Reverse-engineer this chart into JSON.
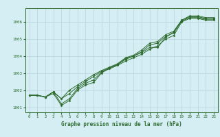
{
  "title": "Graphe pression niveau de la mer (hPa)",
  "background_color": "#d4eef4",
  "grid_color": "#b8d4dc",
  "line_color": "#2d6a2d",
  "text_color": "#2d6a2d",
  "xlim": [
    -0.5,
    23.5
  ],
  "ylim": [
    1000.7,
    1006.8
  ],
  "yticks": [
    1001,
    1002,
    1003,
    1004,
    1005,
    1006
  ],
  "xticks": [
    0,
    1,
    2,
    3,
    4,
    5,
    6,
    7,
    8,
    9,
    10,
    11,
    12,
    13,
    14,
    15,
    16,
    17,
    18,
    19,
    20,
    21,
    22,
    23
  ],
  "hours": [
    0,
    1,
    2,
    3,
    4,
    5,
    6,
    7,
    8,
    9,
    10,
    11,
    12,
    13,
    14,
    15,
    16,
    17,
    18,
    19,
    20,
    21,
    22,
    23
  ],
  "series": [
    [
      1001.7,
      1001.7,
      1001.6,
      1001.8,
      1001.1,
      1001.4,
      1002.0,
      1002.3,
      1002.45,
      1003.0,
      1003.3,
      1003.5,
      1003.8,
      1004.0,
      1004.2,
      1004.5,
      1004.5,
      1005.1,
      1005.4,
      1006.1,
      1006.35,
      1006.35,
      1006.25,
      1006.25
    ],
    [
      1001.7,
      1001.7,
      1001.6,
      1001.9,
      1001.2,
      1001.5,
      1002.1,
      1002.4,
      1002.6,
      1003.05,
      1003.25,
      1003.45,
      1003.7,
      1003.9,
      1004.1,
      1004.4,
      1004.6,
      1005.0,
      1005.2,
      1006.0,
      1006.2,
      1006.2,
      1006.1,
      1006.1
    ],
    [
      1001.7,
      1001.7,
      1001.6,
      1001.9,
      1001.5,
      1001.8,
      1002.2,
      1002.5,
      1002.8,
      1003.1,
      1003.3,
      1003.5,
      1003.85,
      1004.0,
      1004.25,
      1004.65,
      1004.75,
      1005.15,
      1005.35,
      1006.05,
      1006.25,
      1006.25,
      1006.15,
      1006.15
    ],
    [
      1001.7,
      1001.7,
      1001.6,
      1001.9,
      1001.5,
      1002.0,
      1002.3,
      1002.6,
      1002.9,
      1003.15,
      1003.35,
      1003.55,
      1003.9,
      1004.05,
      1004.35,
      1004.75,
      1004.85,
      1005.25,
      1005.45,
      1006.1,
      1006.3,
      1006.3,
      1006.2,
      1006.2
    ]
  ]
}
